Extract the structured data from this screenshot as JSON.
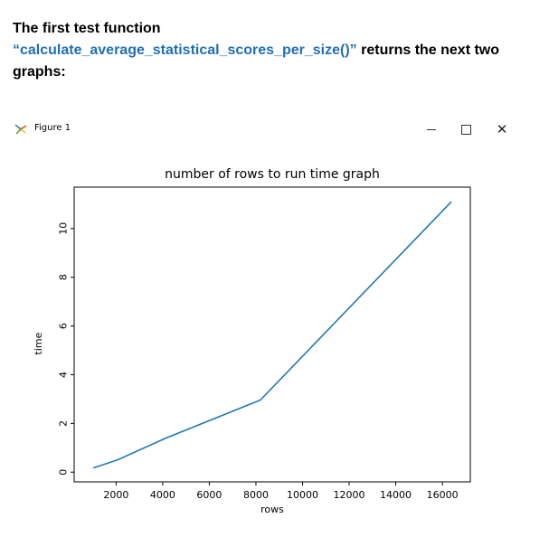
{
  "intro": {
    "line1": "The first test function",
    "function_name": "“calculate_average_statistical_scores_per_size()”",
    "line2_rest": " returns the next two",
    "line3": "graphs:"
  },
  "window": {
    "title": "Figure 1",
    "icon": "matplotlib-figure-icon",
    "minimize_icon": "minimize-icon",
    "maximize_icon": "maximize-icon",
    "close_icon": "close-icon",
    "close_glyph": "✕"
  },
  "chart_data": {
    "type": "line",
    "title": "number of rows to run time graph",
    "xlabel": "rows",
    "ylabel": "time",
    "xlim": [
      200,
      17200
    ],
    "ylim": [
      -0.4,
      11.7
    ],
    "xticks": [
      2000,
      4000,
      6000,
      8000,
      10000,
      12000,
      14000,
      16000
    ],
    "xtick_labels": [
      "2000",
      "4000",
      "6000",
      "8000",
      "10000",
      "12000",
      "14000",
      "16000"
    ],
    "yticks": [
      0,
      2,
      4,
      6,
      8,
      10
    ],
    "ytick_labels": [
      "0",
      "2",
      "4",
      "6",
      "8",
      "10"
    ],
    "grid": false,
    "series": [
      {
        "color": "#1f77b4",
        "x": [
          1024,
          2048,
          4096,
          8192,
          16384
        ],
        "y": [
          0.17,
          0.5,
          1.38,
          2.96,
          11.1
        ]
      }
    ]
  }
}
